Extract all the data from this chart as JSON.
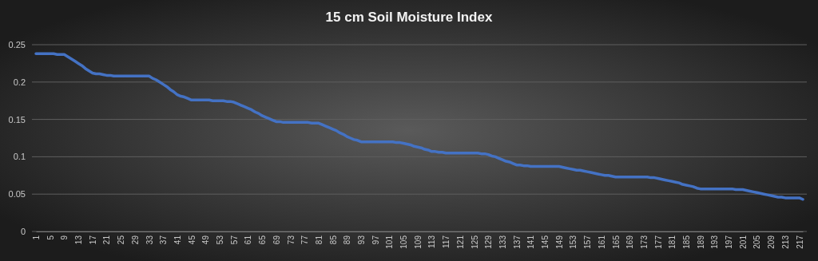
{
  "chart_data": {
    "type": "line",
    "title": "15 cm Soil Moisture Index",
    "categories": [
      "1",
      null,
      null,
      null,
      "5",
      null,
      null,
      null,
      "9",
      null,
      null,
      null,
      "13",
      null,
      null,
      null,
      "17",
      null,
      null,
      null,
      "21",
      null,
      null,
      null,
      "25",
      null,
      null,
      null,
      "29",
      null,
      null,
      null,
      "33",
      null,
      null,
      null,
      "37",
      null,
      null,
      null,
      "41",
      null,
      null,
      null,
      "45",
      null,
      null,
      null,
      "49",
      null,
      null,
      null,
      "53",
      null,
      null,
      null,
      "57",
      null,
      null,
      null,
      "61",
      null,
      null,
      null,
      "65",
      null,
      null,
      null,
      "69",
      null,
      null,
      null,
      "73",
      null,
      null,
      null,
      "77",
      null,
      null,
      null,
      "81",
      null,
      null,
      null,
      "85",
      null,
      null,
      null,
      "89",
      null,
      null,
      null,
      "93",
      null,
      null,
      null,
      "97",
      null,
      null,
      null,
      "101",
      null,
      null,
      null,
      "105",
      null,
      null,
      null,
      "109",
      null,
      null,
      null,
      "113",
      null,
      null,
      null,
      "117",
      null,
      null,
      null,
      "121",
      null,
      null,
      null,
      "125",
      null,
      null,
      null,
      "129",
      null,
      null,
      null,
      "133",
      null,
      null,
      null,
      "137",
      null,
      null,
      null,
      "141",
      null,
      null,
      null,
      "145",
      null,
      null,
      null,
      "149",
      null,
      null,
      null,
      "153",
      null,
      null,
      null,
      "157",
      null,
      null,
      null,
      "161",
      null,
      null,
      null,
      "165",
      null,
      null,
      null,
      "169",
      null,
      null,
      null,
      "173",
      null,
      null,
      null,
      "177",
      null,
      null,
      null,
      "181",
      null,
      null,
      null,
      "185",
      null,
      null,
      null,
      "189",
      null,
      null,
      null,
      "193",
      null,
      null,
      null,
      "197",
      null,
      null,
      null,
      "201",
      null,
      null,
      null,
      "205",
      null,
      null,
      null,
      "209",
      null,
      null,
      null,
      "213",
      null,
      null,
      null,
      "217",
      null
    ],
    "series": [
      {
        "color": "#4472c4",
        "values": [
          0.238,
          0.238,
          0.238,
          0.238,
          0.238,
          0.238,
          0.237,
          0.237,
          0.237,
          0.234,
          0.231,
          0.228,
          0.225,
          0.222,
          0.218,
          0.215,
          0.212,
          0.211,
          0.211,
          0.21,
          0.209,
          0.209,
          0.208,
          0.208,
          0.208,
          0.208,
          0.208,
          0.208,
          0.208,
          0.208,
          0.208,
          0.208,
          0.208,
          0.205,
          0.203,
          0.2,
          0.197,
          0.194,
          0.19,
          0.187,
          0.183,
          0.181,
          0.18,
          0.178,
          0.176,
          0.176,
          0.176,
          0.176,
          0.176,
          0.176,
          0.175,
          0.175,
          0.175,
          0.175,
          0.174,
          0.174,
          0.173,
          0.171,
          0.169,
          0.167,
          0.165,
          0.163,
          0.16,
          0.158,
          0.155,
          0.153,
          0.151,
          0.149,
          0.147,
          0.147,
          0.146,
          0.146,
          0.146,
          0.146,
          0.146,
          0.146,
          0.146,
          0.146,
          0.145,
          0.145,
          0.145,
          0.143,
          0.141,
          0.139,
          0.137,
          0.135,
          0.132,
          0.13,
          0.127,
          0.125,
          0.123,
          0.122,
          0.12,
          0.12,
          0.12,
          0.12,
          0.12,
          0.12,
          0.12,
          0.12,
          0.12,
          0.12,
          0.119,
          0.119,
          0.118,
          0.117,
          0.116,
          0.114,
          0.113,
          0.112,
          0.11,
          0.109,
          0.107,
          0.107,
          0.106,
          0.106,
          0.105,
          0.105,
          0.105,
          0.105,
          0.105,
          0.105,
          0.105,
          0.105,
          0.105,
          0.105,
          0.104,
          0.104,
          0.103,
          0.101,
          0.1,
          0.098,
          0.096,
          0.094,
          0.093,
          0.091,
          0.089,
          0.089,
          0.088,
          0.088,
          0.087,
          0.087,
          0.087,
          0.087,
          0.087,
          0.087,
          0.087,
          0.087,
          0.087,
          0.086,
          0.085,
          0.084,
          0.083,
          0.082,
          0.082,
          0.081,
          0.08,
          0.079,
          0.078,
          0.077,
          0.076,
          0.075,
          0.075,
          0.074,
          0.073,
          0.073,
          0.073,
          0.073,
          0.073,
          0.073,
          0.073,
          0.073,
          0.073,
          0.073,
          0.072,
          0.072,
          0.071,
          0.07,
          0.069,
          0.068,
          0.067,
          0.066,
          0.065,
          0.063,
          0.062,
          0.061,
          0.06,
          0.058,
          0.057,
          0.057,
          0.057,
          0.057,
          0.057,
          0.057,
          0.057,
          0.057,
          0.057,
          0.057,
          0.056,
          0.056,
          0.056,
          0.055,
          0.054,
          0.053,
          0.052,
          0.051,
          0.05,
          0.049,
          0.048,
          0.047,
          0.046,
          0.046,
          0.045,
          0.045,
          0.045,
          0.045,
          0.045,
          0.043
        ]
      }
    ],
    "ylim": [
      0,
      0.25
    ],
    "yticks": [
      0,
      0.05,
      0.1,
      0.15,
      0.2,
      0.25
    ],
    "grid": "y",
    "marker": "none",
    "line_style": "solid"
  }
}
